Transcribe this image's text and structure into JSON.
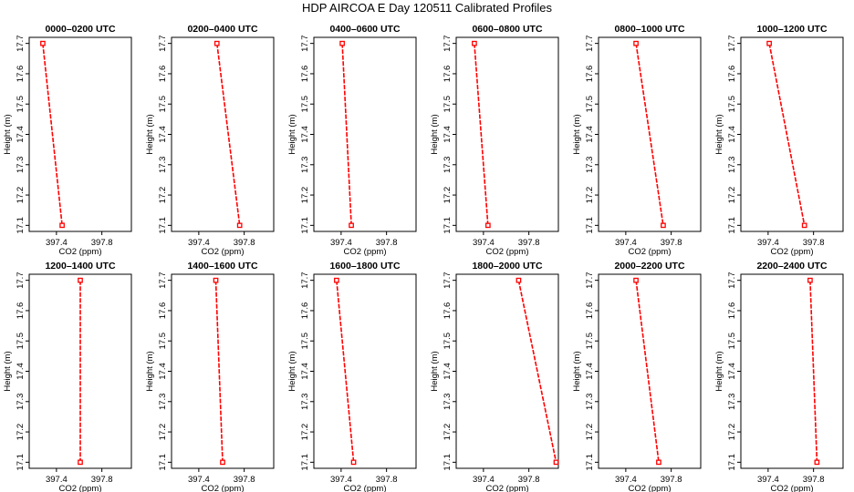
{
  "title": "HDP AIRCOA E  Day 120511  Calibrated Profiles",
  "axis": {
    "xlabel": "CO2 (ppm)",
    "ylabel": "Height (m)",
    "xticks": [
      "397.4",
      "397.8"
    ],
    "yticks": [
      "17.1",
      "17.2",
      "17.3",
      "17.4",
      "17.5",
      "17.6",
      "17.7"
    ]
  },
  "colors": {
    "series": "#ff0000",
    "axes": "#000000"
  },
  "chart_data": [
    {
      "type": "line",
      "title": "0000–0200 UTC",
      "xlim": [
        397.16,
        398.06
      ],
      "ylim": [
        17.08,
        17.72
      ],
      "x": [
        397.28,
        397.45
      ],
      "y": [
        17.7,
        17.1
      ],
      "grid": false
    },
    {
      "type": "line",
      "title": "0200–0400 UTC",
      "xlim": [
        397.16,
        398.06
      ],
      "ylim": [
        17.08,
        17.72
      ],
      "x": [
        397.56,
        397.76
      ],
      "y": [
        17.7,
        17.1
      ],
      "grid": false
    },
    {
      "type": "line",
      "title": "0400–0600 UTC",
      "xlim": [
        397.16,
        398.06
      ],
      "ylim": [
        17.08,
        17.72
      ],
      "x": [
        397.41,
        397.49
      ],
      "y": [
        17.7,
        17.1
      ],
      "grid": false
    },
    {
      "type": "line",
      "title": "0600–0800 UTC",
      "xlim": [
        397.16,
        398.06
      ],
      "ylim": [
        17.08,
        17.72
      ],
      "x": [
        397.32,
        397.44
      ],
      "y": [
        17.7,
        17.1
      ],
      "grid": false
    },
    {
      "type": "line",
      "title": "0800–1000 UTC",
      "xlim": [
        397.16,
        398.06
      ],
      "ylim": [
        17.08,
        17.72
      ],
      "x": [
        397.49,
        397.73
      ],
      "y": [
        17.7,
        17.1
      ],
      "grid": false
    },
    {
      "type": "line",
      "title": "1000–1200 UTC",
      "xlim": [
        397.16,
        398.06
      ],
      "ylim": [
        17.08,
        17.72
      ],
      "x": [
        397.41,
        397.72
      ],
      "y": [
        17.7,
        17.1
      ],
      "grid": false
    },
    {
      "type": "line",
      "title": "1200–1400 UTC",
      "xlim": [
        397.16,
        398.06
      ],
      "ylim": [
        17.08,
        17.72
      ],
      "x": [
        397.61,
        397.61
      ],
      "y": [
        17.7,
        17.1
      ],
      "grid": false
    },
    {
      "type": "line",
      "title": "1400–1600 UTC",
      "xlim": [
        397.16,
        398.06
      ],
      "ylim": [
        17.08,
        17.72
      ],
      "x": [
        397.55,
        397.61
      ],
      "y": [
        17.7,
        17.1
      ],
      "grid": false
    },
    {
      "type": "line",
      "title": "1600–1800 UTC",
      "xlim": [
        397.16,
        398.06
      ],
      "ylim": [
        17.08,
        17.72
      ],
      "x": [
        397.36,
        397.51
      ],
      "y": [
        17.7,
        17.1
      ],
      "grid": false
    },
    {
      "type": "line",
      "title": "1800–2000 UTC",
      "xlim": [
        397.16,
        398.06
      ],
      "ylim": [
        17.08,
        17.72
      ],
      "x": [
        397.71,
        398.04
      ],
      "y": [
        17.7,
        17.1
      ],
      "grid": false
    },
    {
      "type": "line",
      "title": "2000–2200 UTC",
      "xlim": [
        397.16,
        398.06
      ],
      "ylim": [
        17.08,
        17.72
      ],
      "x": [
        397.49,
        397.69
      ],
      "y": [
        17.7,
        17.1
      ],
      "grid": false
    },
    {
      "type": "line",
      "title": "2200–2400 UTC",
      "xlim": [
        397.16,
        398.06
      ],
      "ylim": [
        17.08,
        17.72
      ],
      "x": [
        397.77,
        397.83
      ],
      "y": [
        17.7,
        17.1
      ],
      "grid": false
    }
  ]
}
